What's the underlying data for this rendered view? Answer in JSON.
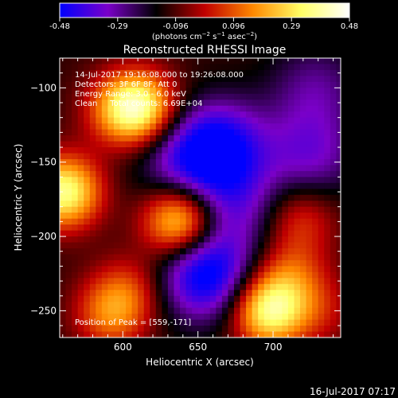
{
  "chart_data": {
    "type": "heatmap",
    "title": "Reconstructed RHESSI Image",
    "xlabel": "Heliocentric X (arcsec)",
    "ylabel": "Heliocentric Y (arcsec)",
    "xlim": [
      558,
      745
    ],
    "ylim": [
      -268,
      -80
    ],
    "x_ticks": [
      600,
      650,
      700
    ],
    "y_ticks": [
      -100,
      -150,
      -200,
      -250
    ],
    "colorbar": {
      "ticks": [
        "-0.48",
        "-0.29",
        "-0.096",
        "0.096",
        "0.29",
        "0.48"
      ],
      "range": [
        -0.48,
        0.48
      ],
      "colors": [
        "#0000ff",
        "#7a00c8",
        "#000000",
        "#c00000",
        "#ff8800",
        "#ffff66",
        "#ffffff"
      ]
    },
    "annotations": [
      "14-Jul-2017 19:16:08.000 to 19:26:08.000",
      "Detectors: 3F 6F 8F, Att 0",
      "Energy Range: 3.0 - 6.0 keV",
      "Clean     Total counts: 6.69E+04"
    ],
    "peak_label": "Position of Peak = [559,-171]",
    "timestamp": "16-Jul-2017 07:17",
    "sources": [
      {
        "x": 561,
        "y": -170,
        "value": 0.48
      },
      {
        "x": 638,
        "y": -190,
        "value": 0.46
      },
      {
        "x": 697,
        "y": -250,
        "value": 0.47
      },
      {
        "x": 612,
        "y": -113,
        "value": 0.4
      },
      {
        "x": 598,
        "y": -115,
        "value": 0.22
      },
      {
        "x": 592,
        "y": -252,
        "value": 0.25
      },
      {
        "x": 718,
        "y": -188,
        "value": 0.18
      },
      {
        "x": 712,
        "y": -225,
        "value": 0.18
      },
      {
        "x": 605,
        "y": -235,
        "value": 0.15
      },
      {
        "x": 730,
        "y": -250,
        "value": 0.12
      },
      {
        "x": 655,
        "y": -225,
        "value": -0.4
      },
      {
        "x": 665,
        "y": -140,
        "value": -0.34
      },
      {
        "x": 725,
        "y": -145,
        "value": -0.2
      },
      {
        "x": 675,
        "y": -180,
        "value": -0.18
      },
      {
        "x": 640,
        "y": -150,
        "value": -0.2
      },
      {
        "x": 728,
        "y": -100,
        "value": -0.15
      }
    ]
  }
}
